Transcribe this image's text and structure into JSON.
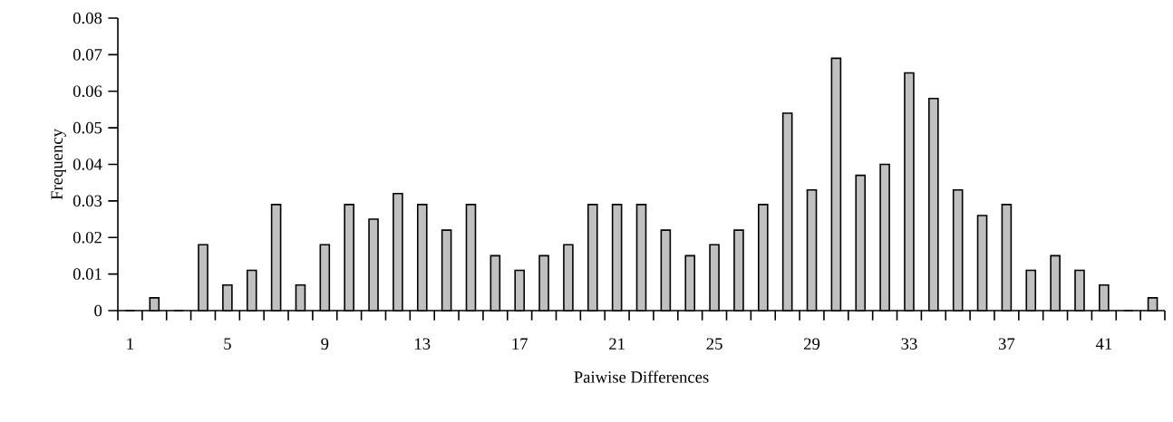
{
  "chart_data": {
    "type": "bar",
    "xlabel": "Paiwise Differences",
    "ylabel": "Frequency",
    "categories": [
      "1",
      null,
      null,
      null,
      "5",
      null,
      null,
      null,
      "9",
      null,
      null,
      null,
      "13",
      null,
      null,
      null,
      "17",
      null,
      null,
      null,
      "21",
      null,
      null,
      null,
      "25",
      null,
      null,
      null,
      "29",
      null,
      null,
      null,
      "33",
      null,
      null,
      null,
      "37",
      null,
      null,
      null,
      "41",
      null,
      null
    ],
    "values": [
      0,
      0.0035,
      0,
      0.018,
      0.007,
      0.011,
      0.029,
      0.007,
      0.018,
      0.029,
      0.025,
      0.032,
      0.029,
      0.022,
      0.029,
      0.015,
      0.011,
      0.015,
      0.018,
      0.029,
      0.029,
      0.029,
      0.022,
      0.015,
      0.018,
      0.022,
      0.029,
      0.054,
      0.033,
      0.069,
      0.037,
      0.04,
      0.065,
      0.058,
      0.033,
      0.026,
      0.029,
      0.011,
      0.015,
      0.011,
      0.007,
      0,
      0.0035
    ],
    "color": "#c0c0c0",
    "ylim": [
      0,
      0.08
    ],
    "yticks": [
      0,
      0.01,
      0.02,
      0.03,
      0.04,
      0.05,
      0.06,
      0.07,
      0.08
    ]
  }
}
